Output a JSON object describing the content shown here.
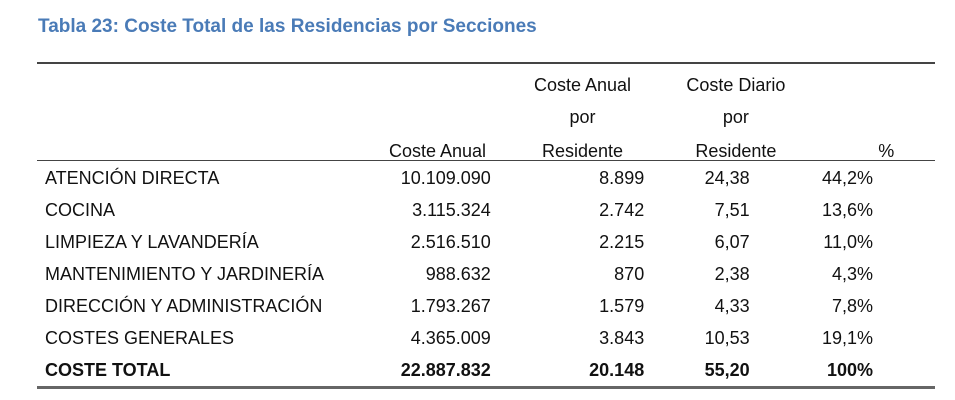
{
  "title": "Tabla 23: Coste Total de las Residencias por Secciones",
  "columns": [
    {
      "lines": [
        "",
        "",
        ""
      ]
    },
    {
      "lines": [
        "",
        "",
        "Coste Anual"
      ]
    },
    {
      "lines": [
        "Coste Anual",
        "por",
        "Residente"
      ]
    },
    {
      "lines": [
        "Coste Diario",
        "por",
        "Residente"
      ]
    },
    {
      "lines": [
        "",
        "",
        "%"
      ]
    }
  ],
  "rows": [
    [
      "ATENCIÓN DIRECTA",
      "10.109.090",
      "8.899",
      "24,38",
      "44,2%"
    ],
    [
      "COCINA",
      "3.115.324",
      "2.742",
      "7,51",
      "13,6%"
    ],
    [
      "LIMPIEZA Y LAVANDERÍA",
      "2.516.510",
      "2.215",
      "6,07",
      "11,0%"
    ],
    [
      "MANTENIMIENTO Y JARDINERÍA",
      "988.632",
      "870",
      "2,38",
      "4,3%"
    ],
    [
      "DIRECCIÓN Y ADMINISTRACIÓN",
      "1.793.267",
      "1.579",
      "4,33",
      "7,8%"
    ],
    [
      "COSTES GENERALES",
      "4.365.009",
      "3.843",
      "10,53",
      "19,1%"
    ]
  ],
  "total": [
    "COSTE TOTAL",
    "22.887.832",
    "20.148",
    "55,20",
    "100%"
  ],
  "colors": {
    "title": "#4a7bb7",
    "rule": "#444444"
  }
}
